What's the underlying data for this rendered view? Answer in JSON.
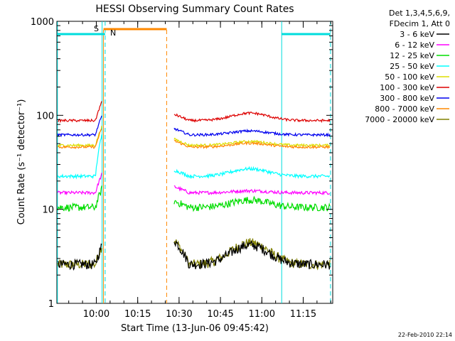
{
  "chart_data": {
    "type": "line",
    "title": "HESSI Observing Summary Count Rates",
    "xlabel": "Start Time (13-Jun-06 09:45:42)",
    "ylabel": "Count Rate (s⁻¹ detector⁻¹)",
    "ylog": true,
    "ylim": [
      1,
      1000
    ],
    "xlim_minutes": [
      0,
      100
    ],
    "x_tick_labels": [
      "10:00",
      "10:15",
      "10:30",
      "10:45",
      "11:00",
      "11:15"
    ],
    "y_tick_labels": [
      "1",
      "10",
      "100",
      "1000"
    ],
    "legend_header": [
      "Det 1,3,4,5,6,9,",
      "FDecim 1, Att 0"
    ],
    "series": [
      {
        "name": "3 - 6 keV",
        "color": "#000000"
      },
      {
        "name": "6 - 12 keV",
        "color": "#ff00ff"
      },
      {
        "name": "12 - 25 keV",
        "color": "#00dd00"
      },
      {
        "name": "25 - 50 keV",
        "color": "#00ffff"
      },
      {
        "name": "50 - 100 keV",
        "color": "#dddd00"
      },
      {
        "name": "100 - 300 keV",
        "color": "#dd0000"
      },
      {
        "name": "300 - 800 keV",
        "color": "#0000ee"
      },
      {
        "name": "800 - 7000 keV",
        "color": "#ff8800"
      },
      {
        "name": "7000 - 20000 keV",
        "color": "#808000"
      }
    ],
    "annotations": {
      "saa_label": "S",
      "night_label": "N"
    },
    "timestamp": "22-Feb-2010 22:14"
  }
}
